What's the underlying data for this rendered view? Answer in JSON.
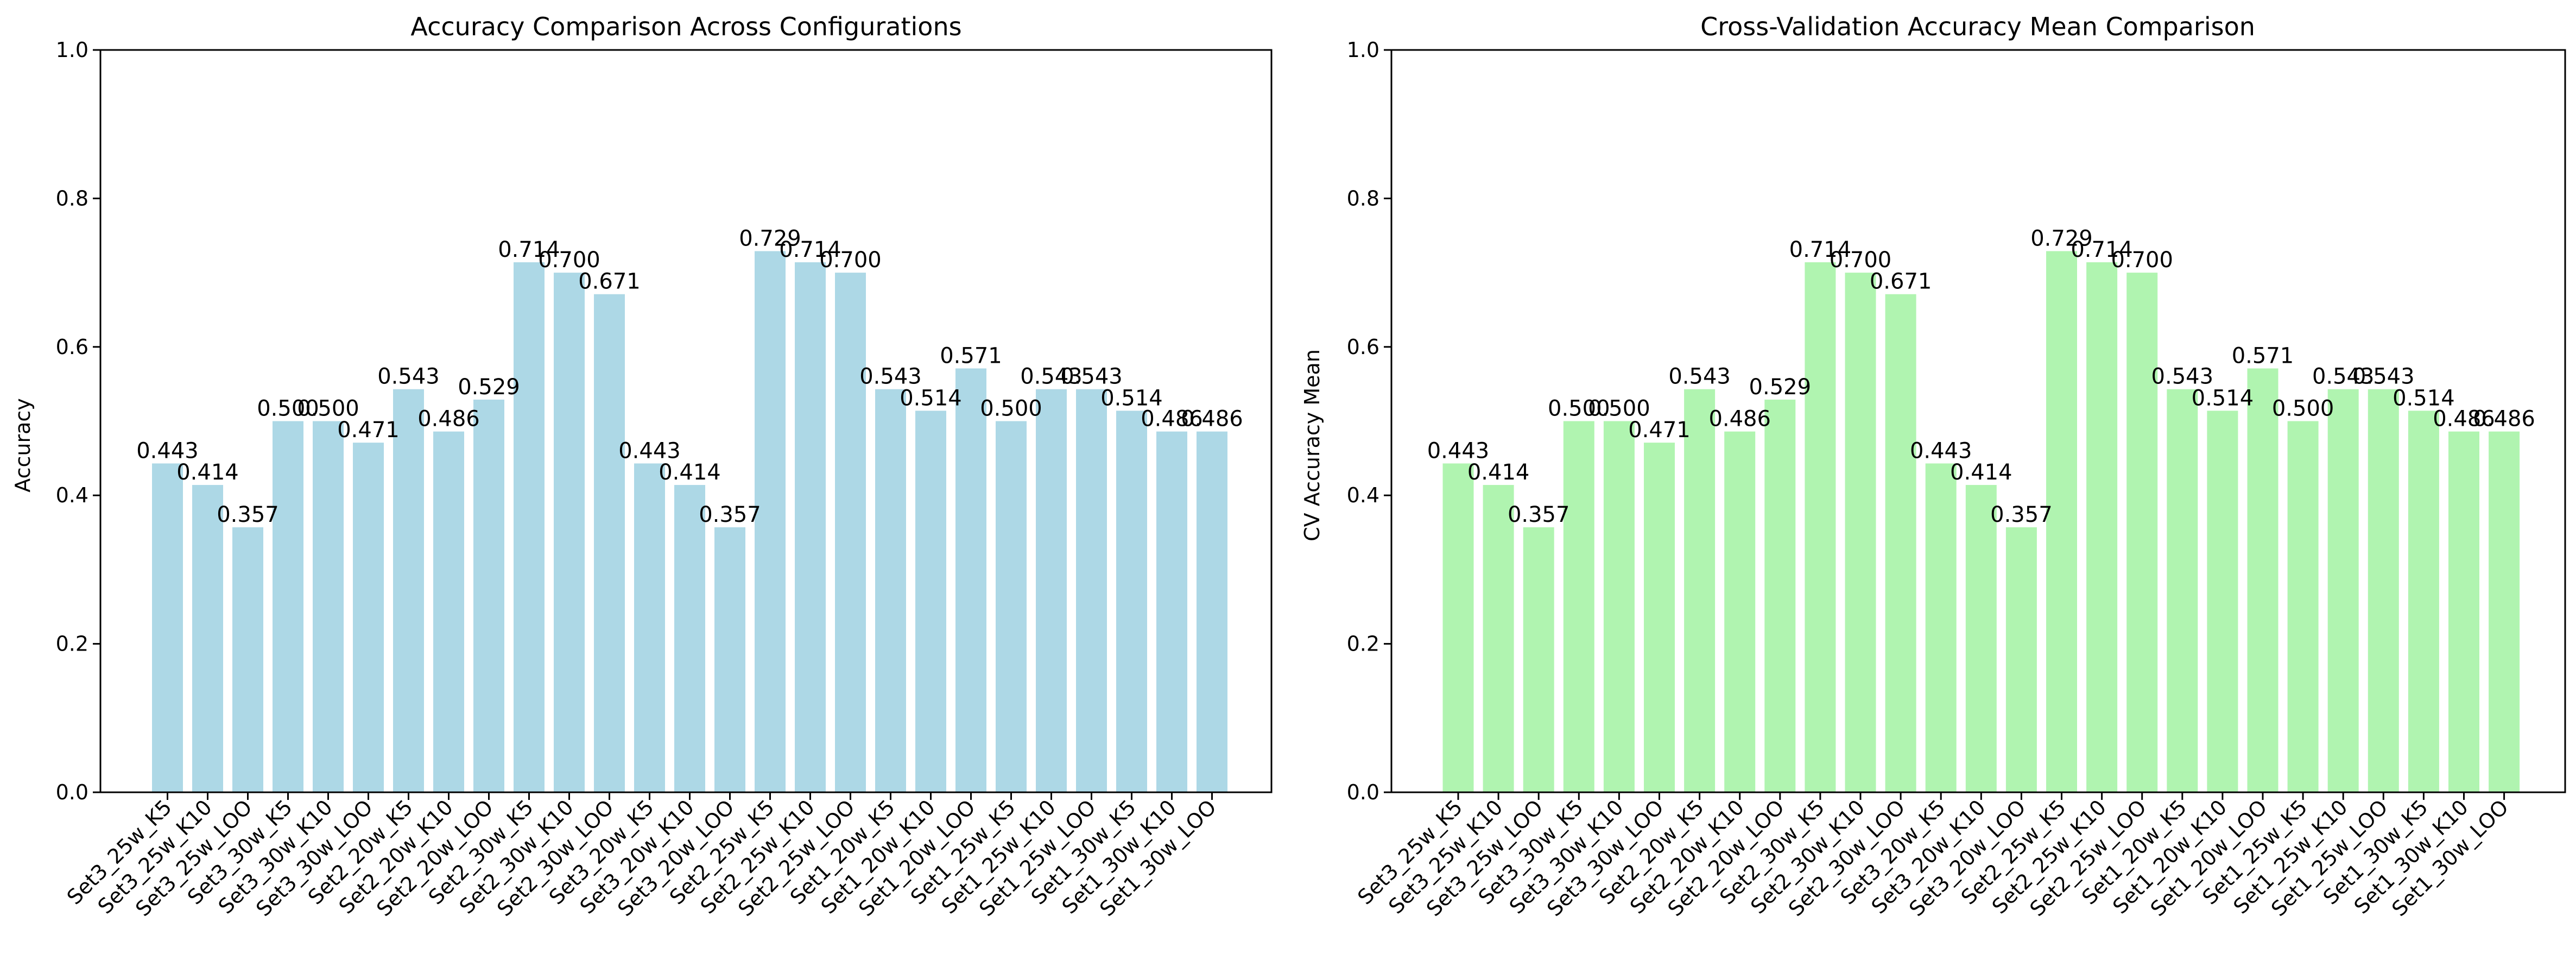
{
  "chart_data": [
    {
      "type": "bar",
      "title": "Accuracy Comparison Across Configurations",
      "xlabel": "",
      "ylabel": "Accuracy",
      "ylim": [
        0,
        1.0
      ],
      "yticks": [
        "0.0",
        "0.2",
        "0.4",
        "0.6",
        "0.8",
        "1.0"
      ],
      "color": "#add8e6",
      "grid": false,
      "categories": [
        "Set3_25w_K5",
        "Set3_25w_K10",
        "Set3_25w_LOO",
        "Set3_30w_K5",
        "Set3_30w_K10",
        "Set3_30w_LOO",
        "Set2_20w_K5",
        "Set2_20w_K10",
        "Set2_20w_LOO",
        "Set2_30w_K5",
        "Set2_30w_K10",
        "Set2_30w_LOO",
        "Set3_20w_K5",
        "Set3_20w_K10",
        "Set3_20w_LOO",
        "Set2_25w_K5",
        "Set2_25w_K10",
        "Set2_25w_LOO",
        "Set1_20w_K5",
        "Set1_20w_K10",
        "Set1_20w_LOO",
        "Set1_25w_K5",
        "Set1_25w_K10",
        "Set1_25w_LOO",
        "Set1_30w_K5",
        "Set1_30w_K10",
        "Set1_30w_LOO"
      ],
      "values": [
        0.443,
        0.414,
        0.357,
        0.5,
        0.5,
        0.471,
        0.543,
        0.486,
        0.529,
        0.714,
        0.7,
        0.671,
        0.443,
        0.414,
        0.357,
        0.729,
        0.714,
        0.7,
        0.543,
        0.514,
        0.571,
        0.5,
        0.543,
        0.543,
        0.514,
        0.486,
        0.486
      ],
      "value_labels": [
        "0.443",
        "0.414",
        "0.357",
        "0.500",
        "0.500",
        "0.471",
        "0.543",
        "0.486",
        "0.529",
        "0.714",
        "0.700",
        "0.671",
        "0.443",
        "0.414",
        "0.357",
        "0.729",
        "0.714",
        "0.700",
        "0.543",
        "0.514",
        "0.571",
        "0.500",
        "0.543",
        "0.543",
        "0.514",
        "0.486",
        "0.486"
      ]
    },
    {
      "type": "bar",
      "title": "Cross-Validation Accuracy Mean Comparison",
      "xlabel": "",
      "ylabel": "CV Accuracy Mean",
      "ylim": [
        0,
        1.0
      ],
      "yticks": [
        "0.0",
        "0.2",
        "0.4",
        "0.6",
        "0.8",
        "1.0"
      ],
      "color": "#b0f4b0",
      "grid": false,
      "categories": [
        "Set3_25w_K5",
        "Set3_25w_K10",
        "Set3_25w_LOO",
        "Set3_30w_K5",
        "Set3_30w_K10",
        "Set3_30w_LOO",
        "Set2_20w_K5",
        "Set2_20w_K10",
        "Set2_20w_LOO",
        "Set2_30w_K5",
        "Set2_30w_K10",
        "Set2_30w_LOO",
        "Set3_20w_K5",
        "Set3_20w_K10",
        "Set3_20w_LOO",
        "Set2_25w_K5",
        "Set2_25w_K10",
        "Set2_25w_LOO",
        "Set1_20w_K5",
        "Set1_20w_K10",
        "Set1_20w_LOO",
        "Set1_25w_K5",
        "Set1_25w_K10",
        "Set1_25w_LOO",
        "Set1_30w_K5",
        "Set1_30w_K10",
        "Set1_30w_LOO"
      ],
      "values": [
        0.443,
        0.414,
        0.357,
        0.5,
        0.5,
        0.471,
        0.543,
        0.486,
        0.529,
        0.714,
        0.7,
        0.671,
        0.443,
        0.414,
        0.357,
        0.729,
        0.714,
        0.7,
        0.543,
        0.514,
        0.571,
        0.5,
        0.543,
        0.543,
        0.514,
        0.486,
        0.486
      ],
      "value_labels": [
        "0.443",
        "0.414",
        "0.357",
        "0.500",
        "0.500",
        "0.471",
        "0.543",
        "0.486",
        "0.529",
        "0.714",
        "0.700",
        "0.671",
        "0.443",
        "0.414",
        "0.357",
        "0.729",
        "0.714",
        "0.700",
        "0.543",
        "0.514",
        "0.571",
        "0.500",
        "0.543",
        "0.543",
        "0.514",
        "0.486",
        "0.486"
      ]
    }
  ]
}
